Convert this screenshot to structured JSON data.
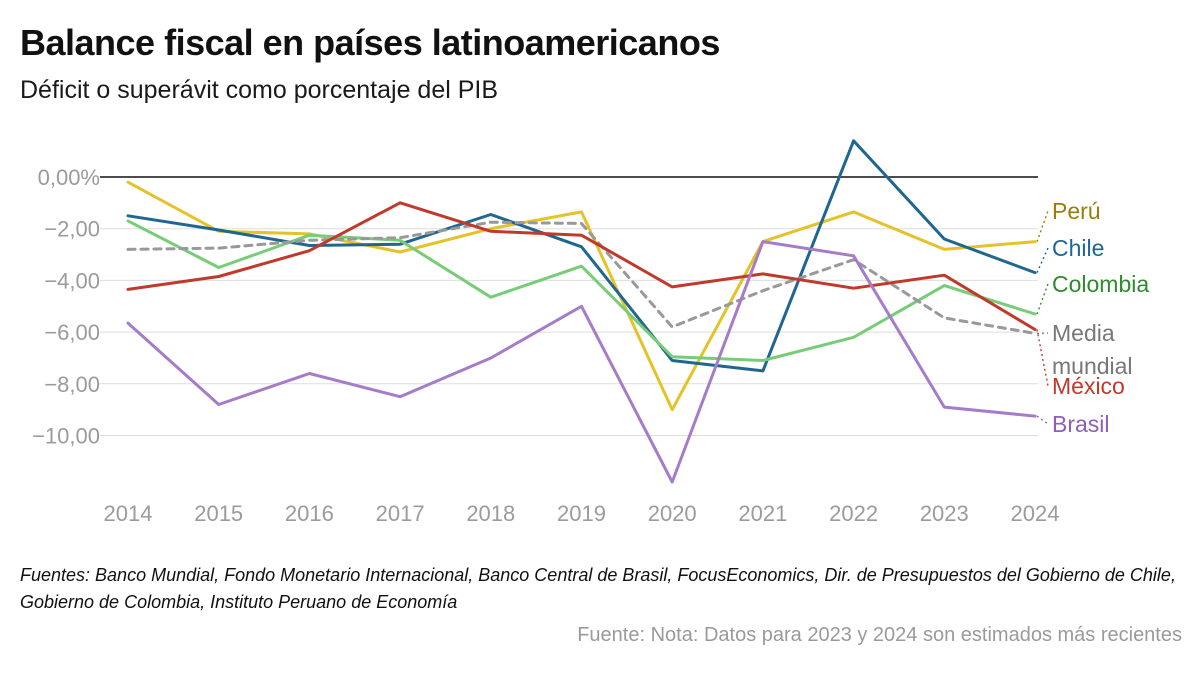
{
  "header": {
    "title": "Balance fiscal en países latinoamericanos",
    "subtitle": "Déficit o superávit como porcentaje del PIB"
  },
  "footer": {
    "sources": "Fuentes: Banco Mundial, Fondo Monetario Internacional, Banco Central de Brasil, FocusEconomics, Dir. de Presupuestos del Gobierno de Chile, Gobierno de Colombia, Instituto Peruano de Economía",
    "note": "Fuente: Nota: Datos para 2023 y 2024 son estimados más recientes"
  },
  "chart_data": {
    "type": "line",
    "title": "Balance fiscal en países latinoamericanos",
    "subtitle": "Déficit o superávit como porcentaje del PIB",
    "xlabel": "",
    "ylabel": "",
    "x": [
      "2014",
      "2015",
      "2016",
      "2017",
      "2018",
      "2019",
      "2020",
      "2021",
      "2022",
      "2023",
      "2024"
    ],
    "ylim": [
      -12.5,
      1.5
    ],
    "yticks": [
      0,
      -2,
      -4,
      -6,
      -8,
      -10
    ],
    "ytick_labels": [
      "0,00%",
      "−2,00",
      "−4,00",
      "−6,00",
      "−8,00",
      "−10,00"
    ],
    "grid": true,
    "legend": "direct labels at right end of lines",
    "series": [
      {
        "name": "Perú",
        "color": "#e6c229",
        "label_color": "#9a7d0a",
        "dashed": false,
        "values": [
          -0.2,
          -2.1,
          -2.2,
          -2.9,
          -2.0,
          -1.35,
          -9.0,
          -2.5,
          -1.35,
          -2.8,
          -2.5
        ]
      },
      {
        "name": "Chile",
        "color": "#1f6690",
        "label_color": "#1f6690",
        "dashed": false,
        "values": [
          -1.5,
          -2.05,
          -2.65,
          -2.6,
          -1.45,
          -2.7,
          -7.1,
          -7.5,
          1.4,
          -2.4,
          -3.7
        ]
      },
      {
        "name": "Colombia",
        "color": "#77cc77",
        "label_color": "#2e8b2e",
        "dashed": false,
        "values": [
          -1.7,
          -3.5,
          -2.25,
          -2.45,
          -4.65,
          -3.45,
          -6.95,
          -7.1,
          -6.2,
          -4.2,
          -5.3
        ]
      },
      {
        "name": "Media mundial",
        "color": "#999999",
        "label_color": "#777777",
        "dashed": true,
        "values": [
          -2.8,
          -2.75,
          -2.45,
          -2.35,
          -1.75,
          -1.8,
          -5.8,
          -4.4,
          -3.2,
          -5.45,
          -6.05
        ]
      },
      {
        "name": "México",
        "color": "#c0392b",
        "label_color": "#c0392b",
        "dashed": false,
        "values": [
          -4.35,
          -3.85,
          -2.85,
          -1.0,
          -2.1,
          -2.25,
          -4.25,
          -3.75,
          -4.3,
          -3.8,
          -5.9
        ]
      },
      {
        "name": "Brasil",
        "color": "#a67cc9",
        "label_color": "#8e5fb5",
        "dashed": false,
        "values": [
          -5.65,
          -8.8,
          -7.6,
          -8.5,
          -7.0,
          -5.0,
          -11.8,
          -2.5,
          -3.05,
          -8.9,
          -9.25
        ]
      }
    ]
  }
}
